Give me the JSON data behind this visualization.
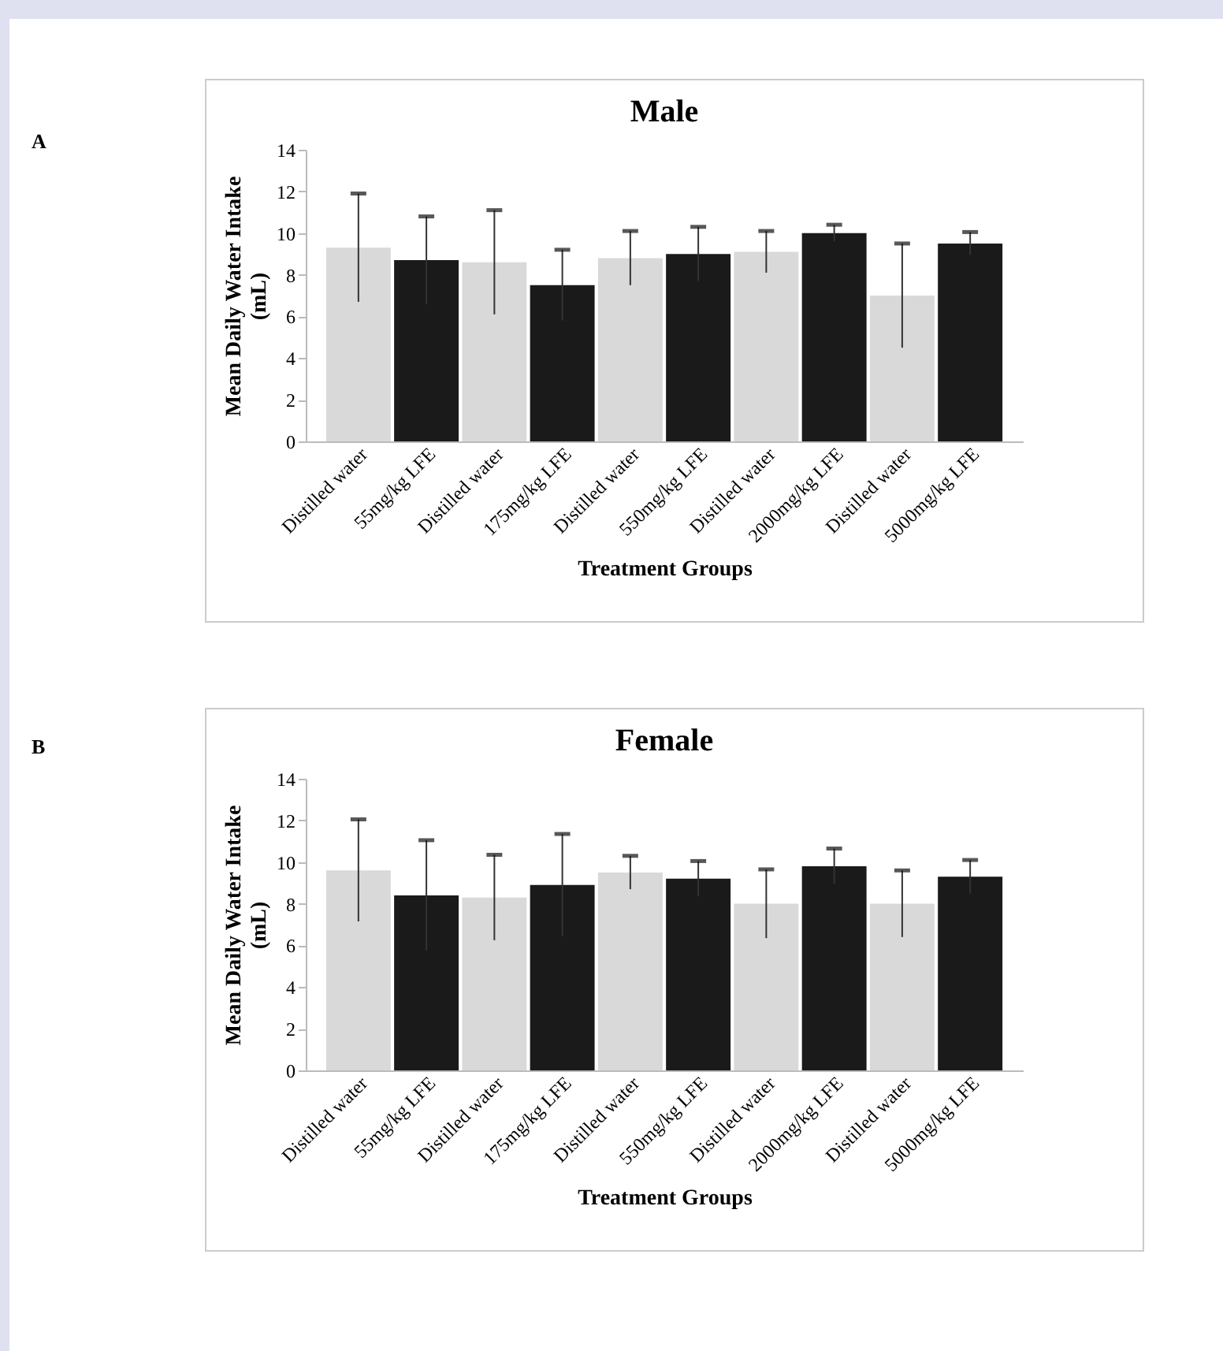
{
  "chart_data": [
    {
      "type": "bar",
      "title": "Male",
      "xlabel": "Treatment Groups",
      "ylabel": "Mean Daily Water Intake (mL)",
      "annotations": [
        "A"
      ],
      "categories": [
        "Distilled water",
        "55mg/kg LFE",
        "Distilled water",
        "175mg/kg LFE",
        "Distilled water",
        "550mg/kg LFE",
        "Distilled water",
        "2000mg/kg LFE",
        "Distilled water",
        "5000mg/kg LFE"
      ],
      "values": [
        9.3,
        8.7,
        8.6,
        7.5,
        8.8,
        9.0,
        9.1,
        10.0,
        7.0,
        9.5
      ],
      "errors": [
        2.6,
        2.1,
        2.5,
        1.7,
        1.3,
        1.3,
        1.0,
        0.4,
        2.5,
        0.55
      ],
      "colors": [
        "#d9d9d9",
        "#1a1a1a",
        "#d9d9d9",
        "#1a1a1a",
        "#d9d9d9",
        "#1a1a1a",
        "#d9d9d9",
        "#1a1a1a",
        "#d9d9d9",
        "#1a1a1a"
      ],
      "ylim": [
        0,
        14
      ],
      "yticks": [
        0,
        2,
        4,
        6,
        8,
        10,
        12,
        14
      ],
      "grid": false
    },
    {
      "type": "bar",
      "title": "Female",
      "xlabel": "Treatment Groups",
      "ylabel": "Mean Daily Water Intake (mL)",
      "annotations": [
        "B"
      ],
      "categories": [
        "Distilled water",
        "55mg/kg LFE",
        "Distilled water",
        "175mg/kg LFE",
        "Distilled water",
        "550mg/kg LFE",
        "Distilled water",
        "2000mg/kg LFE",
        "Distilled water",
        "5000mg/kg LFE"
      ],
      "values": [
        9.6,
        8.4,
        8.3,
        8.9,
        9.5,
        9.2,
        8.0,
        9.8,
        8.0,
        9.3
      ],
      "errors": [
        2.45,
        2.65,
        2.05,
        2.45,
        0.8,
        0.85,
        1.65,
        0.85,
        1.6,
        0.8
      ],
      "colors": [
        "#d9d9d9",
        "#1a1a1a",
        "#d9d9d9",
        "#1a1a1a",
        "#d9d9d9",
        "#1a1a1a",
        "#d9d9d9",
        "#1a1a1a",
        "#d9d9d9",
        "#1a1a1a"
      ],
      "ylim": [
        0,
        14
      ],
      "yticks": [
        0,
        2,
        4,
        6,
        8,
        10,
        12,
        14
      ],
      "grid": false
    }
  ]
}
